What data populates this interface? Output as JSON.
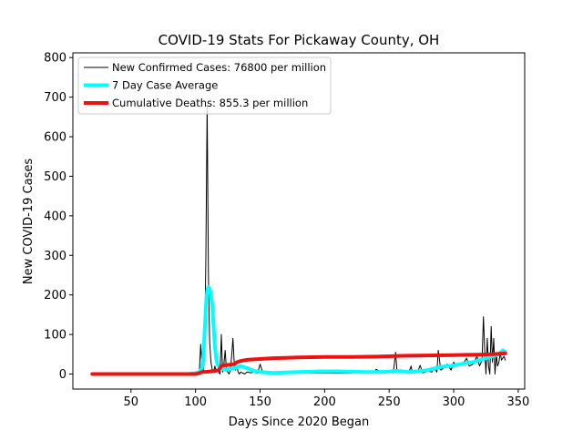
{
  "chart_data": {
    "type": "line",
    "title": "COVID-19 Stats For Pickaway County, OH",
    "xlabel": "Days Since 2020 Began",
    "ylabel": "New COVID-19 Cases",
    "xlim": [
      5,
      355
    ],
    "ylim": [
      -38,
      812
    ],
    "xticks": [
      50,
      100,
      150,
      200,
      250,
      300,
      350
    ],
    "yticks": [
      0,
      100,
      200,
      300,
      400,
      500,
      600,
      700,
      800
    ],
    "grid": false,
    "legend_position": "top-left",
    "series": [
      {
        "name": "New Confirmed Cases: 76800 per million",
        "color": "#000000",
        "line_width": 1,
        "x": [
          95,
          98,
          100,
          102,
          103,
          104,
          105,
          106,
          107,
          108,
          109,
          110,
          111,
          112,
          113,
          114,
          115,
          116,
          117,
          118,
          119,
          120,
          121,
          122,
          123,
          124,
          125,
          126,
          127,
          128,
          129,
          130,
          131,
          132,
          133,
          134,
          135,
          138,
          140,
          143,
          145,
          148,
          150,
          152,
          155,
          160,
          170,
          180,
          190,
          200,
          210,
          220,
          230,
          238,
          240,
          245,
          250,
          253,
          254,
          255,
          256,
          258,
          260,
          262,
          265,
          267,
          268,
          270,
          272,
          274,
          276,
          278,
          280,
          283,
          285,
          287,
          288,
          290,
          292,
          295,
          298,
          300,
          302,
          305,
          308,
          310,
          312,
          315,
          318,
          320,
          322,
          323,
          324,
          325,
          326,
          327,
          328,
          329,
          330,
          331,
          332,
          333,
          334,
          335,
          336,
          337,
          338,
          339,
          340
        ],
        "y": [
          0,
          2,
          0,
          5,
          10,
          75,
          20,
          5,
          40,
          300,
          680,
          250,
          80,
          30,
          10,
          5,
          20,
          5,
          10,
          5,
          0,
          100,
          5,
          25,
          60,
          10,
          5,
          0,
          10,
          45,
          90,
          30,
          10,
          20,
          5,
          0,
          5,
          0,
          5,
          3,
          5,
          2,
          25,
          5,
          3,
          2,
          3,
          2,
          2,
          3,
          2,
          2,
          3,
          3,
          12,
          3,
          5,
          3,
          25,
          55,
          10,
          5,
          3,
          5,
          2,
          20,
          3,
          10,
          5,
          22,
          3,
          5,
          8,
          5,
          15,
          5,
          60,
          10,
          15,
          25,
          10,
          30,
          20,
          25,
          30,
          40,
          20,
          25,
          45,
          20,
          35,
          145,
          60,
          0,
          90,
          20,
          0,
          120,
          30,
          90,
          0,
          50,
          20,
          30,
          55,
          35,
          40,
          45,
          35
        ]
      },
      {
        "name": "7 Day Case Average",
        "color": "#00ffff",
        "line_width": 4,
        "x": [
          95,
          100,
          103,
          105,
          106,
          107,
          108,
          109,
          110,
          111,
          112,
          113,
          114,
          115,
          116,
          117,
          118,
          120,
          122,
          125,
          130,
          135,
          140,
          145,
          150,
          155,
          160,
          170,
          180,
          190,
          200,
          210,
          220,
          230,
          240,
          250,
          255,
          260,
          265,
          270,
          275,
          280,
          285,
          290,
          295,
          300,
          305,
          310,
          315,
          320,
          325,
          330,
          335,
          338,
          340
        ],
        "y": [
          0,
          2,
          5,
          15,
          40,
          100,
          170,
          210,
          220,
          215,
          200,
          170,
          120,
          70,
          40,
          25,
          20,
          15,
          12,
          12,
          15,
          20,
          15,
          8,
          5,
          4,
          3,
          4,
          5,
          6,
          7,
          7,
          6,
          5,
          5,
          6,
          8,
          7,
          5,
          6,
          8,
          10,
          14,
          18,
          20,
          22,
          25,
          28,
          30,
          35,
          40,
          45,
          50,
          60,
          55
        ]
      },
      {
        "name": "Cumulative Deaths: 855.3 per million",
        "color": "#ee1111",
        "line_width": 4,
        "x": [
          20,
          50,
          80,
          90,
          100,
          103,
          105,
          110,
          115,
          118,
          120,
          122,
          125,
          130,
          132,
          135,
          140,
          145,
          150,
          160,
          170,
          180,
          200,
          220,
          240,
          250,
          260,
          280,
          300,
          320,
          330,
          340
        ],
        "y": [
          0,
          0,
          0,
          0,
          0,
          2,
          5,
          6,
          8,
          10,
          20,
          22,
          23,
          25,
          30,
          33,
          36,
          37,
          38,
          40,
          41,
          42,
          43,
          43,
          44,
          45,
          46,
          47,
          48,
          49,
          50,
          52
        ]
      }
    ]
  }
}
